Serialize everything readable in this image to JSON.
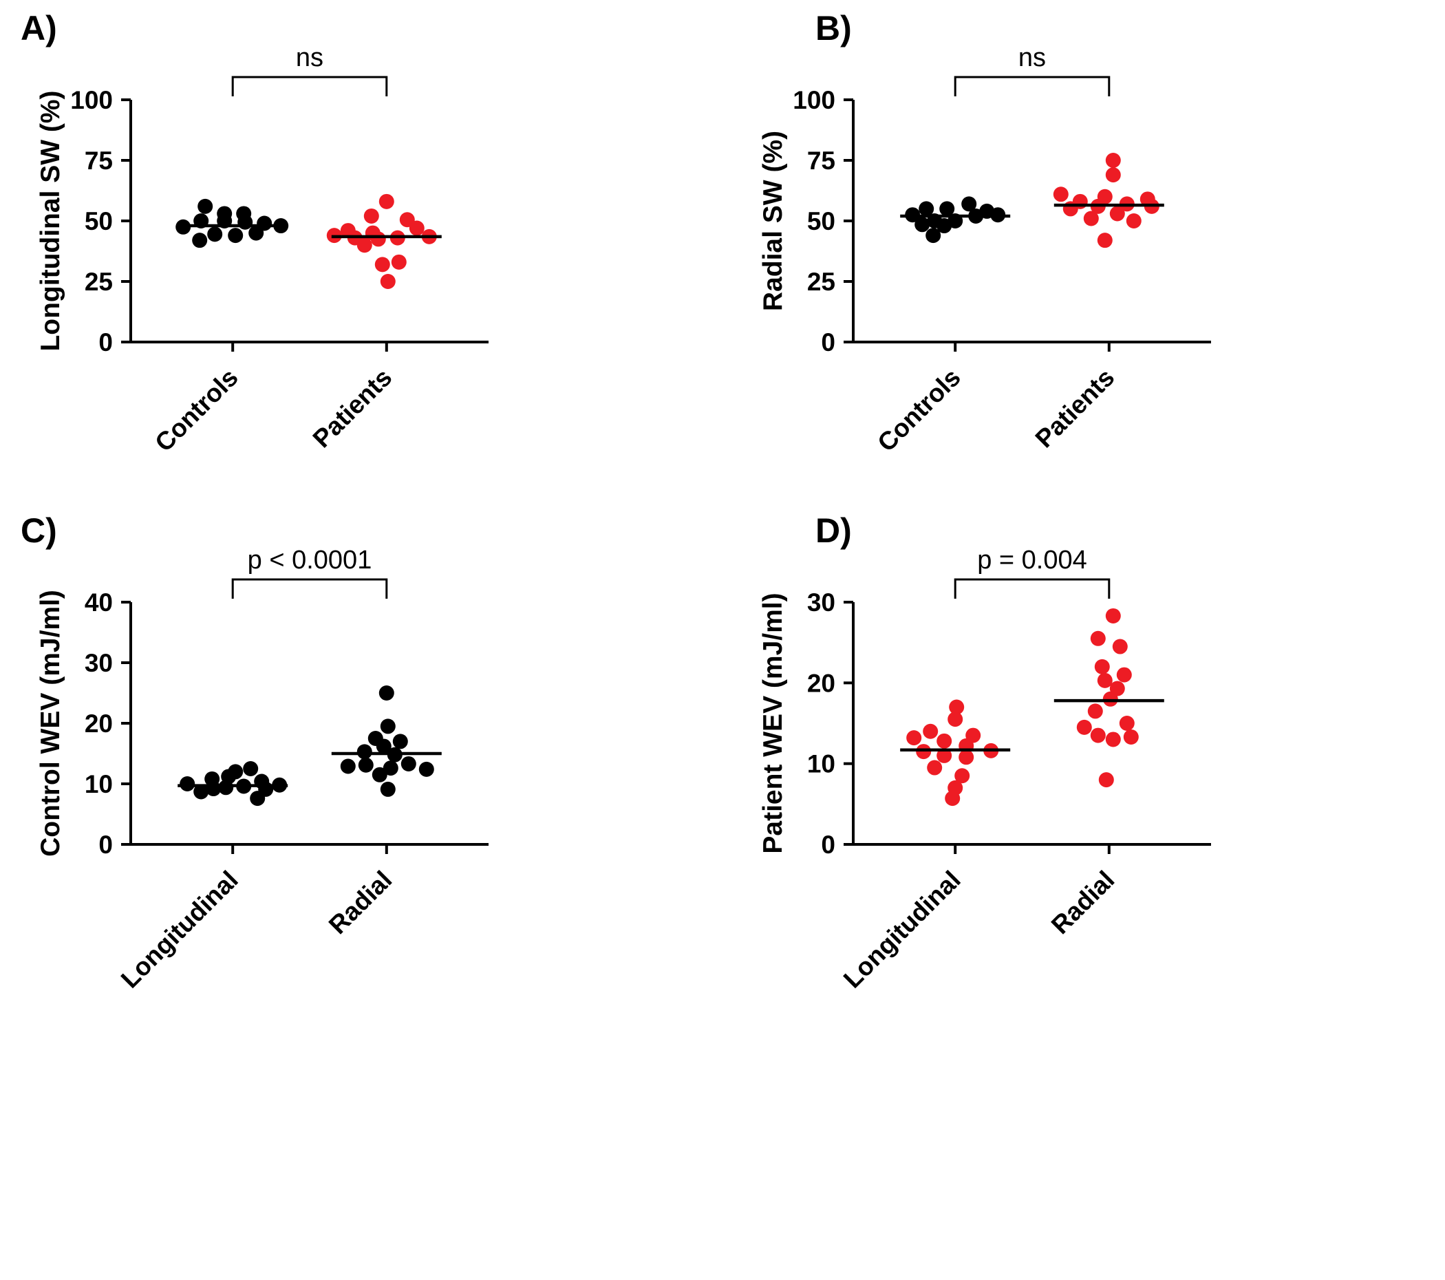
{
  "figure": {
    "background": "#ffffff",
    "axis_color": "#000000",
    "black_dot_color": "#000000",
    "red_dot_color": "#ed1c24"
  },
  "chart_data": [
    {
      "type": "scatter",
      "panel_label": "A)",
      "ylabel": "Longitudinal SW (%)",
      "ylim": [
        0,
        100
      ],
      "yticks": [
        0,
        25,
        50,
        75,
        100
      ],
      "significance": "ns",
      "legend_position": "none",
      "grid": false,
      "groups": [
        {
          "label": "Controls",
          "color": "#000000",
          "median": 48,
          "points": [
            [
              -40,
              56
            ],
            [
              -12,
              53
            ],
            [
              16,
              53
            ],
            [
              -46,
              50
            ],
            [
              -12,
              50
            ],
            [
              18,
              49.5
            ],
            [
              46,
              49
            ],
            [
              -72,
              47.5
            ],
            [
              70,
              48
            ],
            [
              -26,
              44.5
            ],
            [
              4,
              44
            ],
            [
              34,
              45
            ],
            [
              -48,
              42
            ]
          ]
        },
        {
          "label": "Patients",
          "color": "#ed1c24",
          "median": 43.5,
          "points": [
            [
              0,
              58
            ],
            [
              -22,
              52
            ],
            [
              30,
              50.5
            ],
            [
              44,
              47
            ],
            [
              -56,
              46
            ],
            [
              -20,
              45
            ],
            [
              -76,
              44
            ],
            [
              -46,
              43
            ],
            [
              -12,
              42.5
            ],
            [
              16,
              43
            ],
            [
              62,
              43.5
            ],
            [
              -32,
              40
            ],
            [
              18,
              33
            ],
            [
              -6,
              32
            ],
            [
              2,
              25
            ]
          ]
        }
      ]
    },
    {
      "type": "scatter",
      "panel_label": "B)",
      "ylabel": "Radial SW (%)",
      "ylim": [
        0,
        100
      ],
      "yticks": [
        0,
        25,
        50,
        75,
        100
      ],
      "significance": "ns",
      "legend_position": "none",
      "grid": false,
      "groups": [
        {
          "label": "Controls",
          "color": "#000000",
          "median": 52,
          "points": [
            [
              20,
              57
            ],
            [
              -42,
              55
            ],
            [
              -12,
              55
            ],
            [
              46,
              54
            ],
            [
              -62,
              52.5
            ],
            [
              30,
              52
            ],
            [
              62,
              52.5
            ],
            [
              -30,
              50
            ],
            [
              0,
              50
            ],
            [
              -48,
              48.5
            ],
            [
              -16,
              48
            ],
            [
              -32,
              44
            ]
          ]
        },
        {
          "label": "Patients",
          "color": "#ed1c24",
          "median": 56.5,
          "points": [
            [
              6,
              75
            ],
            [
              6,
              69
            ],
            [
              -70,
              61
            ],
            [
              -6,
              60
            ],
            [
              56,
              59
            ],
            [
              -42,
              58
            ],
            [
              26,
              57
            ],
            [
              -16,
              56
            ],
            [
              62,
              56
            ],
            [
              -56,
              55
            ],
            [
              12,
              53
            ],
            [
              -26,
              51
            ],
            [
              36,
              50
            ],
            [
              -6,
              42
            ]
          ]
        }
      ]
    },
    {
      "type": "scatter",
      "panel_label": "C)",
      "ylabel": "Control WEV (mJ/ml)",
      "ylim": [
        0,
        40
      ],
      "yticks": [
        0,
        10,
        20,
        30,
        40
      ],
      "significance": "p < 0.0001",
      "legend_position": "none",
      "grid": false,
      "groups": [
        {
          "label": "Longitudinal",
          "color": "#000000",
          "median": 9.7,
          "points": [
            [
              -66,
              10
            ],
            [
              -46,
              8.7
            ],
            [
              -28,
              9.2
            ],
            [
              -30,
              10.8
            ],
            [
              -6,
              11.2
            ],
            [
              4,
              12
            ],
            [
              26,
              12.5
            ],
            [
              -10,
              9.4
            ],
            [
              16,
              9.6
            ],
            [
              42,
              10.4
            ],
            [
              48,
              9.1
            ],
            [
              68,
              9.8
            ],
            [
              36,
              7.6
            ]
          ]
        },
        {
          "label": "Radial",
          "color": "#000000",
          "median": 15,
          "points": [
            [
              0,
              25
            ],
            [
              2,
              19.5
            ],
            [
              -16,
              17.5
            ],
            [
              20,
              17
            ],
            [
              -4,
              16.2
            ],
            [
              -32,
              15.3
            ],
            [
              12,
              14.8
            ],
            [
              -56,
              12.9
            ],
            [
              -30,
              13.1
            ],
            [
              6,
              12.6
            ],
            [
              32,
              13.3
            ],
            [
              58,
              12.4
            ],
            [
              -10,
              11.5
            ],
            [
              2,
              9.1
            ]
          ]
        }
      ]
    },
    {
      "type": "scatter",
      "panel_label": "D)",
      "ylabel": "Patient WEV (mJ/ml)",
      "ylim": [
        0,
        30
      ],
      "yticks": [
        0,
        10,
        20,
        30
      ],
      "significance": "p = 0.004",
      "legend_position": "none",
      "grid": false,
      "groups": [
        {
          "label": "Longitudinal",
          "color": "#ed1c24",
          "median": 11.7,
          "points": [
            [
              2,
              17
            ],
            [
              0,
              15.5
            ],
            [
              -36,
              14
            ],
            [
              -60,
              13.2
            ],
            [
              26,
              13.5
            ],
            [
              -16,
              12.8
            ],
            [
              16,
              12.2
            ],
            [
              -46,
              11.5
            ],
            [
              -16,
              11
            ],
            [
              16,
              10.8
            ],
            [
              52,
              11.6
            ],
            [
              -30,
              9.5
            ],
            [
              10,
              8.5
            ],
            [
              0,
              7
            ],
            [
              -4,
              5.7
            ]
          ]
        },
        {
          "label": "Radial",
          "color": "#ed1c24",
          "median": 17.8,
          "points": [
            [
              6,
              28.3
            ],
            [
              -16,
              25.5
            ],
            [
              16,
              24.5
            ],
            [
              -10,
              22
            ],
            [
              22,
              21
            ],
            [
              -6,
              20.3
            ],
            [
              12,
              19.3
            ],
            [
              2,
              18
            ],
            [
              -20,
              16.5
            ],
            [
              26,
              15
            ],
            [
              -36,
              14.5
            ],
            [
              32,
              13.3
            ],
            [
              -16,
              13.5
            ],
            [
              6,
              13
            ],
            [
              -4,
              8
            ]
          ]
        }
      ]
    }
  ]
}
